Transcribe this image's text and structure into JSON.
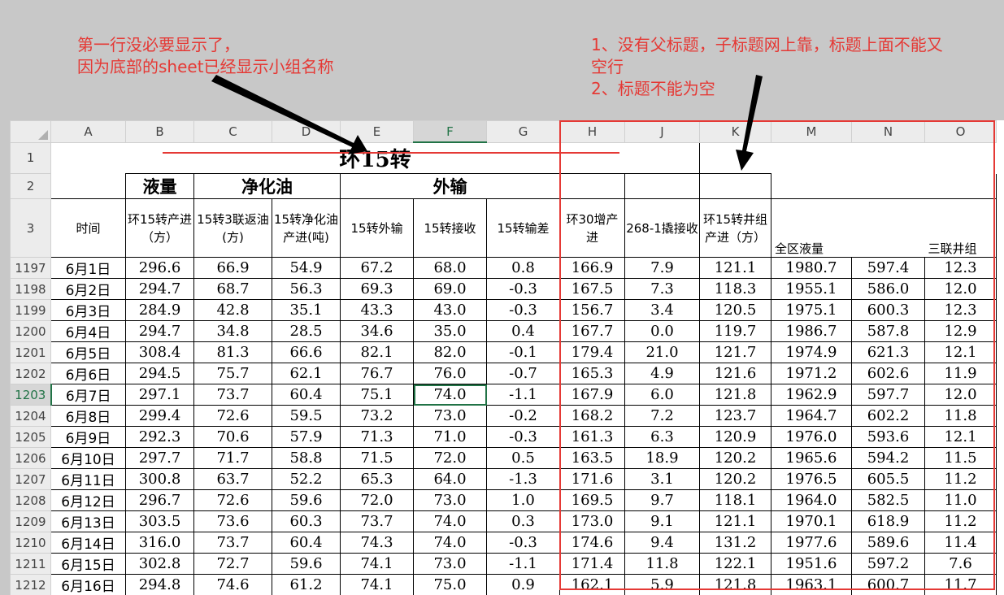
{
  "notes": {
    "left": [
      "第一行没必要显示了，",
      "因为底部的sheet已经显示小组名称"
    ],
    "right": [
      "1、没有父标题，子标题网上靠，标题上面不能又",
      "空行",
      "2、标题不能为空"
    ]
  },
  "columns": [
    "A",
    "B",
    "C",
    "D",
    "E",
    "F",
    "G",
    "H",
    "J",
    "K",
    "M",
    "N",
    "O"
  ],
  "header_rows": [
    "1",
    "2",
    "3"
  ],
  "sheet_title": "环15转",
  "groups": {
    "liquid": "液量",
    "purified_oil": "净化油",
    "export": "外输"
  },
  "subheaders": {
    "time": "时间",
    "huan15_output": "环15转产进（方）",
    "sanlian_return": "15转3联返油(方)",
    "purified_output": "15转净化油产进(吨)",
    "export_out": "15转外输",
    "receive": "15转接收",
    "diff": "15转输差",
    "huan30": "环30增产进",
    "w268": "268-1撬接收",
    "huan15_well": "环15转井组产进（方）",
    "total_liquid": "全区液量",
    "blank": "",
    "sanlian_well": "三联井组"
  },
  "rows": [
    {
      "n": "1197",
      "date": "6月1日",
      "v": [
        "296.6",
        "66.9",
        "54.9",
        "67.2",
        "68.0",
        "0.8",
        "166.9",
        "7.9",
        "121.1",
        "1980.7",
        "597.4",
        "12.3"
      ]
    },
    {
      "n": "1198",
      "date": "6月2日",
      "v": [
        "294.7",
        "68.7",
        "56.3",
        "69.3",
        "69.0",
        "-0.3",
        "167.5",
        "7.3",
        "118.3",
        "1955.1",
        "586.0",
        "12.0"
      ]
    },
    {
      "n": "1199",
      "date": "6月3日",
      "v": [
        "284.9",
        "42.8",
        "35.1",
        "43.3",
        "43.0",
        "-0.3",
        "156.7",
        "3.4",
        "120.5",
        "1975.1",
        "600.3",
        "12.3"
      ]
    },
    {
      "n": "1200",
      "date": "6月4日",
      "v": [
        "294.7",
        "34.8",
        "28.5",
        "34.6",
        "35.0",
        "0.4",
        "167.7",
        "0.0",
        "119.7",
        "1986.7",
        "587.8",
        "12.9"
      ]
    },
    {
      "n": "1201",
      "date": "6月5日",
      "v": [
        "308.4",
        "81.3",
        "66.6",
        "82.1",
        "82.0",
        "-0.1",
        "179.4",
        "21.0",
        "121.7",
        "1974.9",
        "621.3",
        "12.1"
      ]
    },
    {
      "n": "1202",
      "date": "6月6日",
      "v": [
        "294.5",
        "75.7",
        "62.1",
        "76.7",
        "76.0",
        "-0.7",
        "165.3",
        "4.9",
        "121.6",
        "1971.2",
        "602.6",
        "11.9"
      ]
    },
    {
      "n": "1203",
      "date": "6月7日",
      "v": [
        "297.1",
        "73.7",
        "60.4",
        "75.1",
        "74.0",
        "-1.1",
        "167.9",
        "6.0",
        "121.8",
        "1962.9",
        "597.7",
        "12.0"
      ]
    },
    {
      "n": "1204",
      "date": "6月8日",
      "v": [
        "299.4",
        "72.6",
        "59.5",
        "73.2",
        "73.0",
        "-0.2",
        "168.2",
        "7.2",
        "123.7",
        "1964.7",
        "602.2",
        "11.8"
      ]
    },
    {
      "n": "1205",
      "date": "6月9日",
      "v": [
        "292.3",
        "70.6",
        "57.9",
        "71.3",
        "71.0",
        "-0.3",
        "161.3",
        "6.3",
        "120.9",
        "1976.0",
        "593.6",
        "12.1"
      ]
    },
    {
      "n": "1206",
      "date": "6月10日",
      "v": [
        "297.7",
        "71.7",
        "58.8",
        "71.5",
        "72.0",
        "0.5",
        "163.5",
        "18.9",
        "120.2",
        "1965.6",
        "594.2",
        "11.5"
      ]
    },
    {
      "n": "1207",
      "date": "6月11日",
      "v": [
        "300.8",
        "63.7",
        "52.2",
        "65.3",
        "64.0",
        "-1.3",
        "171.6",
        "3.1",
        "120.2",
        "1976.5",
        "605.5",
        "11.2"
      ]
    },
    {
      "n": "1208",
      "date": "6月12日",
      "v": [
        "296.7",
        "72.6",
        "59.6",
        "72.0",
        "73.0",
        "1.0",
        "169.5",
        "9.7",
        "118.1",
        "1964.0",
        "582.5",
        "11.0"
      ]
    },
    {
      "n": "1209",
      "date": "6月13日",
      "v": [
        "303.5",
        "73.6",
        "60.3",
        "73.7",
        "74.0",
        "0.3",
        "173.0",
        "9.1",
        "121.1",
        "1970.1",
        "618.9",
        "11.2"
      ]
    },
    {
      "n": "1210",
      "date": "6月14日",
      "v": [
        "316.0",
        "73.7",
        "60.4",
        "74.3",
        "74.0",
        "-0.3",
        "174.6",
        "9.4",
        "131.2",
        "1977.6",
        "589.6",
        "11.4"
      ]
    },
    {
      "n": "1211",
      "date": "6月15日",
      "v": [
        "302.8",
        "72.7",
        "59.6",
        "74.1",
        "73.0",
        "-1.1",
        "171.4",
        "11.8",
        "122.1",
        "1951.6",
        "597.2",
        "7.6"
      ]
    },
    {
      "n": "1212",
      "date": "6月16日",
      "v": [
        "294.8",
        "74.6",
        "61.2",
        "74.1",
        "75.0",
        "0.9",
        "162.1",
        "5.9",
        "121.8",
        "1963.1",
        "600.7",
        "11.7"
      ]
    }
  ],
  "active_cell": {
    "row": "1203",
    "column": "F"
  },
  "colors": {
    "annotation": "#e53935",
    "selection": "#217346"
  }
}
